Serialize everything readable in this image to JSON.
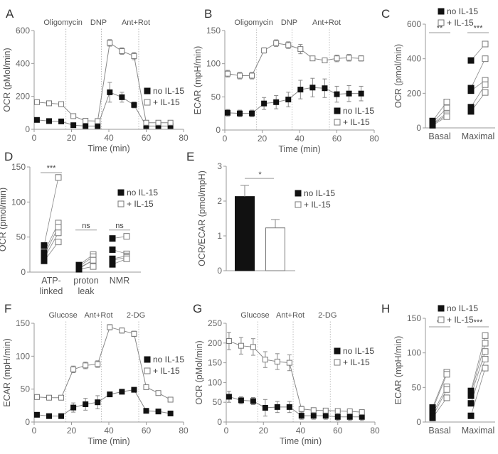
{
  "legend": {
    "no": "no IL-15",
    "plus": "+ IL-15"
  },
  "colors": {
    "no": "#111111",
    "plus": "#ffffff",
    "stroke": "#777777",
    "axis": "#999999"
  },
  "chart_data": [
    {
      "panel": "A",
      "type": "line",
      "xlabel": "Time (min)",
      "ylabel": "OCR (pMol/min)",
      "xlim": [
        0,
        80
      ],
      "ylim": [
        0,
        600
      ],
      "xticks": [
        0,
        20,
        40,
        60,
        80
      ],
      "yticks": [
        0,
        200,
        400,
        600
      ],
      "injections": [
        {
          "label": "Oligomycin",
          "x": 17
        },
        {
          "label": "DNP",
          "x": 36
        },
        {
          "label": "Ant+Rot",
          "x": 56
        }
      ],
      "x": [
        1.5,
        8,
        14.5,
        21,
        27.5,
        34,
        40.5,
        47,
        53.5,
        60,
        66.5,
        73
      ],
      "series": [
        {
          "name": "no IL-15",
          "values": [
            57,
            50,
            48,
            25,
            20,
            20,
            225,
            195,
            148,
            20,
            20,
            20
          ],
          "err": [
            5,
            5,
            5,
            4,
            3,
            3,
            60,
            30,
            18,
            4,
            4,
            4
          ]
        },
        {
          "name": "+ IL-15",
          "values": [
            165,
            158,
            153,
            80,
            52,
            50,
            525,
            475,
            445,
            40,
            40,
            40
          ],
          "err": [
            6,
            6,
            6,
            8,
            5,
            5,
            20,
            20,
            22,
            5,
            5,
            5
          ]
        }
      ],
      "legend_pos": "right"
    },
    {
      "panel": "B",
      "type": "line",
      "xlabel": "Time (min)",
      "ylabel": "ECAR (mpH/min)",
      "xlim": [
        0,
        80
      ],
      "ylim": [
        0,
        150
      ],
      "xticks": [
        0,
        20,
        40,
        60,
        80
      ],
      "yticks": [
        0,
        50,
        100,
        150
      ],
      "injections": [
        {
          "label": "Oligomycin",
          "x": 17
        },
        {
          "label": "DNP",
          "x": 36
        },
        {
          "label": "Ant+Rot",
          "x": 56
        }
      ],
      "x": [
        1.5,
        8,
        14.5,
        21,
        27.5,
        34,
        40.5,
        47,
        53.5,
        60,
        66.5,
        73
      ],
      "series": [
        {
          "name": "no IL-15",
          "values": [
            26,
            25,
            25,
            40,
            42,
            46,
            61,
            64,
            63,
            54,
            55,
            55
          ],
          "err": [
            5,
            5,
            5,
            9,
            10,
            11,
            14,
            14,
            14,
            12,
            12,
            11
          ]
        },
        {
          "name": "+ IL-15",
          "values": [
            85,
            82,
            82,
            120,
            131,
            128,
            122,
            108,
            105,
            108,
            109,
            108
          ],
          "err": [
            5,
            5,
            5,
            4,
            5,
            5,
            7,
            3,
            3,
            5,
            5,
            4
          ]
        }
      ],
      "legend_pos": "bottom-right"
    },
    {
      "panel": "C",
      "type": "scatter",
      "ylabel": "OCR (pmol/min)",
      "ylim": [
        0,
        600
      ],
      "yticks": [
        0,
        200,
        400,
        600
      ],
      "categories": [
        "Basal",
        "Maximal"
      ],
      "pairs": [
        {
          "category": "Basal",
          "no": [
            40,
            30,
            25,
            20,
            15
          ],
          "plus": [
            150,
            115,
            85,
            75,
            65
          ],
          "sig": "**"
        },
        {
          "category": "Maximal",
          "no": [
            390,
            230,
            215,
            120,
            95
          ],
          "plus": [
            485,
            400,
            275,
            250,
            205
          ],
          "sig": "***"
        }
      ],
      "legend_pos": "top"
    },
    {
      "panel": "D",
      "type": "scatter",
      "ylabel": "OCR (pmol/min)",
      "ylim": [
        0,
        150
      ],
      "yticks": [
        0,
        50,
        100,
        150
      ],
      "categories": [
        "ATP-\nlinked",
        "proton\nleak",
        "NMR"
      ],
      "pairs": [
        {
          "category": "ATP-linked",
          "no": [
            38,
            28,
            24,
            20,
            16
          ],
          "plus": [
            135,
            70,
            64,
            56,
            43
          ],
          "sig": "***"
        },
        {
          "category": "proton leak",
          "no": [
            10,
            8,
            6,
            5,
            4
          ],
          "plus": [
            25,
            22,
            17,
            17,
            8
          ],
          "sig": "ns"
        },
        {
          "category": "NMR",
          "no": [
            48,
            32,
            19,
            17,
            11
          ],
          "plus": [
            51,
            26,
            23,
            21,
            19
          ],
          "sig": "ns"
        }
      ],
      "legend_pos": "right"
    },
    {
      "panel": "E",
      "type": "bar",
      "ylabel": "OCR/ECAR (pmol/mpH)",
      "ylim": [
        0,
        3
      ],
      "yticks": [
        0,
        1,
        2,
        3
      ],
      "categories": [
        "no IL-15",
        "+ IL-15"
      ],
      "values": [
        2.13,
        1.23
      ],
      "err": [
        0.32,
        0.24
      ],
      "sig": "*",
      "legend_pos": "right"
    },
    {
      "panel": "F",
      "type": "line",
      "xlabel": "Time (min)",
      "ylabel": "ECAR (mpH/min)",
      "xlim": [
        0,
        80
      ],
      "ylim": [
        0,
        150
      ],
      "xticks": [
        0,
        20,
        40,
        60,
        80
      ],
      "yticks": [
        0,
        50,
        100,
        150
      ],
      "injections": [
        {
          "label": "Glucose",
          "x": 17
        },
        {
          "label": "Ant+Rot",
          "x": 36
        },
        {
          "label": "2-DG",
          "x": 56
        }
      ],
      "x": [
        1.5,
        8,
        14.5,
        21,
        27.5,
        34,
        40.5,
        47,
        53.5,
        60,
        66.5,
        73
      ],
      "series": [
        {
          "name": "no IL-15",
          "values": [
            11,
            9,
            9,
            22,
            27,
            30,
            42,
            46,
            49,
            17,
            16,
            13
          ],
          "err": [
            2,
            2,
            2,
            7,
            9,
            10,
            3,
            2,
            2,
            2,
            2,
            2
          ]
        },
        {
          "name": "+ IL-15",
          "values": [
            38,
            37,
            37,
            80,
            86,
            88,
            144,
            139,
            134,
            53,
            44,
            34
          ],
          "err": [
            2,
            2,
            2,
            5,
            5,
            5,
            4,
            4,
            4,
            3,
            3,
            2
          ]
        }
      ],
      "legend_pos": "right"
    },
    {
      "panel": "G",
      "type": "line",
      "xlabel": "Time (min)",
      "ylabel": "OCR (pMol/min)",
      "xlim": [
        0,
        80
      ],
      "ylim": [
        0,
        250
      ],
      "xticks": [
        0,
        20,
        40,
        60,
        80
      ],
      "yticks": [
        0,
        50,
        100,
        150,
        200,
        250
      ],
      "injections": [
        {
          "label": "Glucose",
          "x": 17
        },
        {
          "label": "Ant+Rot",
          "x": 36
        },
        {
          "label": "2-DG",
          "x": 56
        }
      ],
      "x": [
        1.5,
        8,
        14.5,
        21,
        27.5,
        34,
        40.5,
        47,
        53.5,
        60,
        66.5,
        73
      ],
      "series": [
        {
          "name": "no IL-15",
          "values": [
            64,
            55,
            53,
            36,
            38,
            38,
            16,
            16,
            16,
            13,
            13,
            13
          ],
          "err": [
            14,
            9,
            9,
            21,
            14,
            14,
            9,
            9,
            9,
            9,
            9,
            9
          ]
        },
        {
          "name": "+ IL-15",
          "values": [
            205,
            193,
            190,
            158,
            153,
            150,
            33,
            30,
            29,
            28,
            27,
            25
          ],
          "err": [
            22,
            21,
            21,
            20,
            20,
            20,
            7,
            6,
            6,
            6,
            5,
            5
          ]
        }
      ],
      "legend_pos": "right"
    },
    {
      "panel": "H",
      "type": "scatter",
      "ylabel": "ECAR (mpH/min)",
      "ylim": [
        0,
        150
      ],
      "yticks": [
        0,
        50,
        100,
        150
      ],
      "categories": [
        "Basal",
        "Maximal"
      ],
      "pairs": [
        {
          "category": "Basal",
          "no": [
            21,
            18,
            12,
            8,
            6
          ],
          "plus": [
            72,
            69,
            51,
            47,
            35
          ],
          "sig": "**"
        },
        {
          "category": "Maximal",
          "no": [
            45,
            42,
            38,
            27,
            9
          ],
          "plus": [
            125,
            114,
            102,
            91,
            78
          ],
          "sig": "***"
        }
      ],
      "legend_pos": "top"
    }
  ]
}
